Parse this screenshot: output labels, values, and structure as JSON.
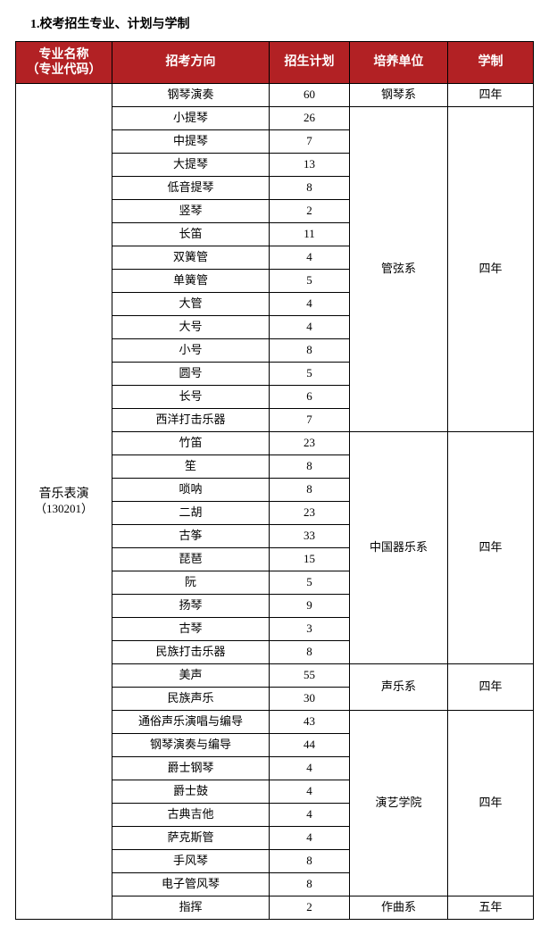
{
  "page_title": "1.校考招生专业、计划与学制",
  "colors": {
    "header_bg": "#b22124",
    "header_fg": "#ffffff",
    "border": "#000000",
    "background": "#ffffff",
    "text": "#000000"
  },
  "columns": [
    "专业名称\n（专业代码）",
    "招考方向",
    "招生计划",
    "培养单位",
    "学制"
  ],
  "major": {
    "name": "音乐表演",
    "code": "（130201）"
  },
  "groups": [
    {
      "unit": "钢琴系",
      "duration": "四年",
      "rows": [
        {
          "dir": "钢琴演奏",
          "plan": "60"
        }
      ]
    },
    {
      "unit": "管弦系",
      "duration": "四年",
      "rows": [
        {
          "dir": "小提琴",
          "plan": "26"
        },
        {
          "dir": "中提琴",
          "plan": "7"
        },
        {
          "dir": "大提琴",
          "plan": "13"
        },
        {
          "dir": "低音提琴",
          "plan": "8"
        },
        {
          "dir": "竖琴",
          "plan": "2"
        },
        {
          "dir": "长笛",
          "plan": "11"
        },
        {
          "dir": "双簧管",
          "plan": "4"
        },
        {
          "dir": "单簧管",
          "plan": "5"
        },
        {
          "dir": "大管",
          "plan": "4"
        },
        {
          "dir": "大号",
          "plan": "4"
        },
        {
          "dir": "小号",
          "plan": "8"
        },
        {
          "dir": "圆号",
          "plan": "5"
        },
        {
          "dir": "长号",
          "plan": "6"
        },
        {
          "dir": "西洋打击乐器",
          "plan": "7"
        }
      ]
    },
    {
      "unit": "中国器乐系",
      "duration": "四年",
      "rows": [
        {
          "dir": "竹笛",
          "plan": "23"
        },
        {
          "dir": "笙",
          "plan": "8"
        },
        {
          "dir": "唢呐",
          "plan": "8"
        },
        {
          "dir": "二胡",
          "plan": "23"
        },
        {
          "dir": "古筝",
          "plan": "33"
        },
        {
          "dir": "琵琶",
          "plan": "15"
        },
        {
          "dir": "阮",
          "plan": "5"
        },
        {
          "dir": "扬琴",
          "plan": "9"
        },
        {
          "dir": "古琴",
          "plan": "3"
        },
        {
          "dir": "民族打击乐器",
          "plan": "8"
        }
      ]
    },
    {
      "unit": "声乐系",
      "duration": "四年",
      "rows": [
        {
          "dir": "美声",
          "plan": "55"
        },
        {
          "dir": "民族声乐",
          "plan": "30"
        }
      ]
    },
    {
      "unit": "演艺学院",
      "duration": "四年",
      "rows": [
        {
          "dir": "通俗声乐演唱与编导",
          "plan": "43"
        },
        {
          "dir": "钢琴演奏与编导",
          "plan": "44"
        },
        {
          "dir": "爵士钢琴",
          "plan": "4"
        },
        {
          "dir": "爵士鼓",
          "plan": "4"
        },
        {
          "dir": "古典吉他",
          "plan": "4"
        },
        {
          "dir": "萨克斯管",
          "plan": "4"
        },
        {
          "dir": "手风琴",
          "plan": "8"
        },
        {
          "dir": "电子管风琴",
          "plan": "8"
        }
      ]
    },
    {
      "unit": "作曲系",
      "duration": "五年",
      "rows": [
        {
          "dir": "指挥",
          "plan": "2"
        }
      ]
    }
  ]
}
